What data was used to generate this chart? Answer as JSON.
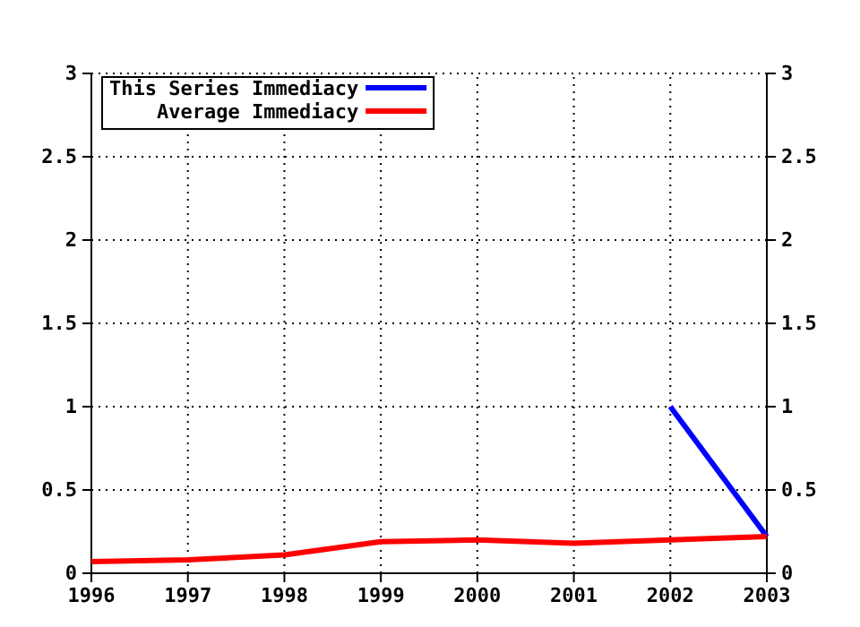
{
  "chart_data": {
    "type": "line",
    "x": [
      1996,
      1997,
      1998,
      1999,
      2000,
      2001,
      2002,
      2003
    ],
    "series": [
      {
        "name": "This Series Immediacy",
        "color": "#0000ff",
        "values": [
          null,
          null,
          null,
          null,
          null,
          null,
          1.0,
          0.22
        ]
      },
      {
        "name": "Average Immediacy",
        "color": "#ff0000",
        "values": [
          0.07,
          0.08,
          0.11,
          0.19,
          0.2,
          0.18,
          0.2,
          0.22
        ]
      }
    ],
    "xlim": [
      1996,
      2003
    ],
    "xticks": [
      1996,
      1997,
      1998,
      1999,
      2000,
      2001,
      2002,
      2003
    ],
    "ylim": [
      0,
      3
    ],
    "yticks": [
      0,
      {
        "value": 0.5,
        "label": "0.5"
      },
      1,
      {
        "value": 1.5,
        "label": "1.5"
      },
      2,
      {
        "value": 2.5,
        "label": "2.5"
      },
      3
    ],
    "y2lim": [
      0,
      3
    ],
    "y2ticks": [
      0,
      {
        "value": 0.5,
        "label": "0.5"
      },
      1,
      {
        "value": 1.5,
        "label": "1.5"
      },
      2,
      {
        "value": 2.5,
        "label": "2.5"
      },
      3
    ],
    "grid": true,
    "legend": "top left",
    "line_style": "solid",
    "marker": "none"
  }
}
